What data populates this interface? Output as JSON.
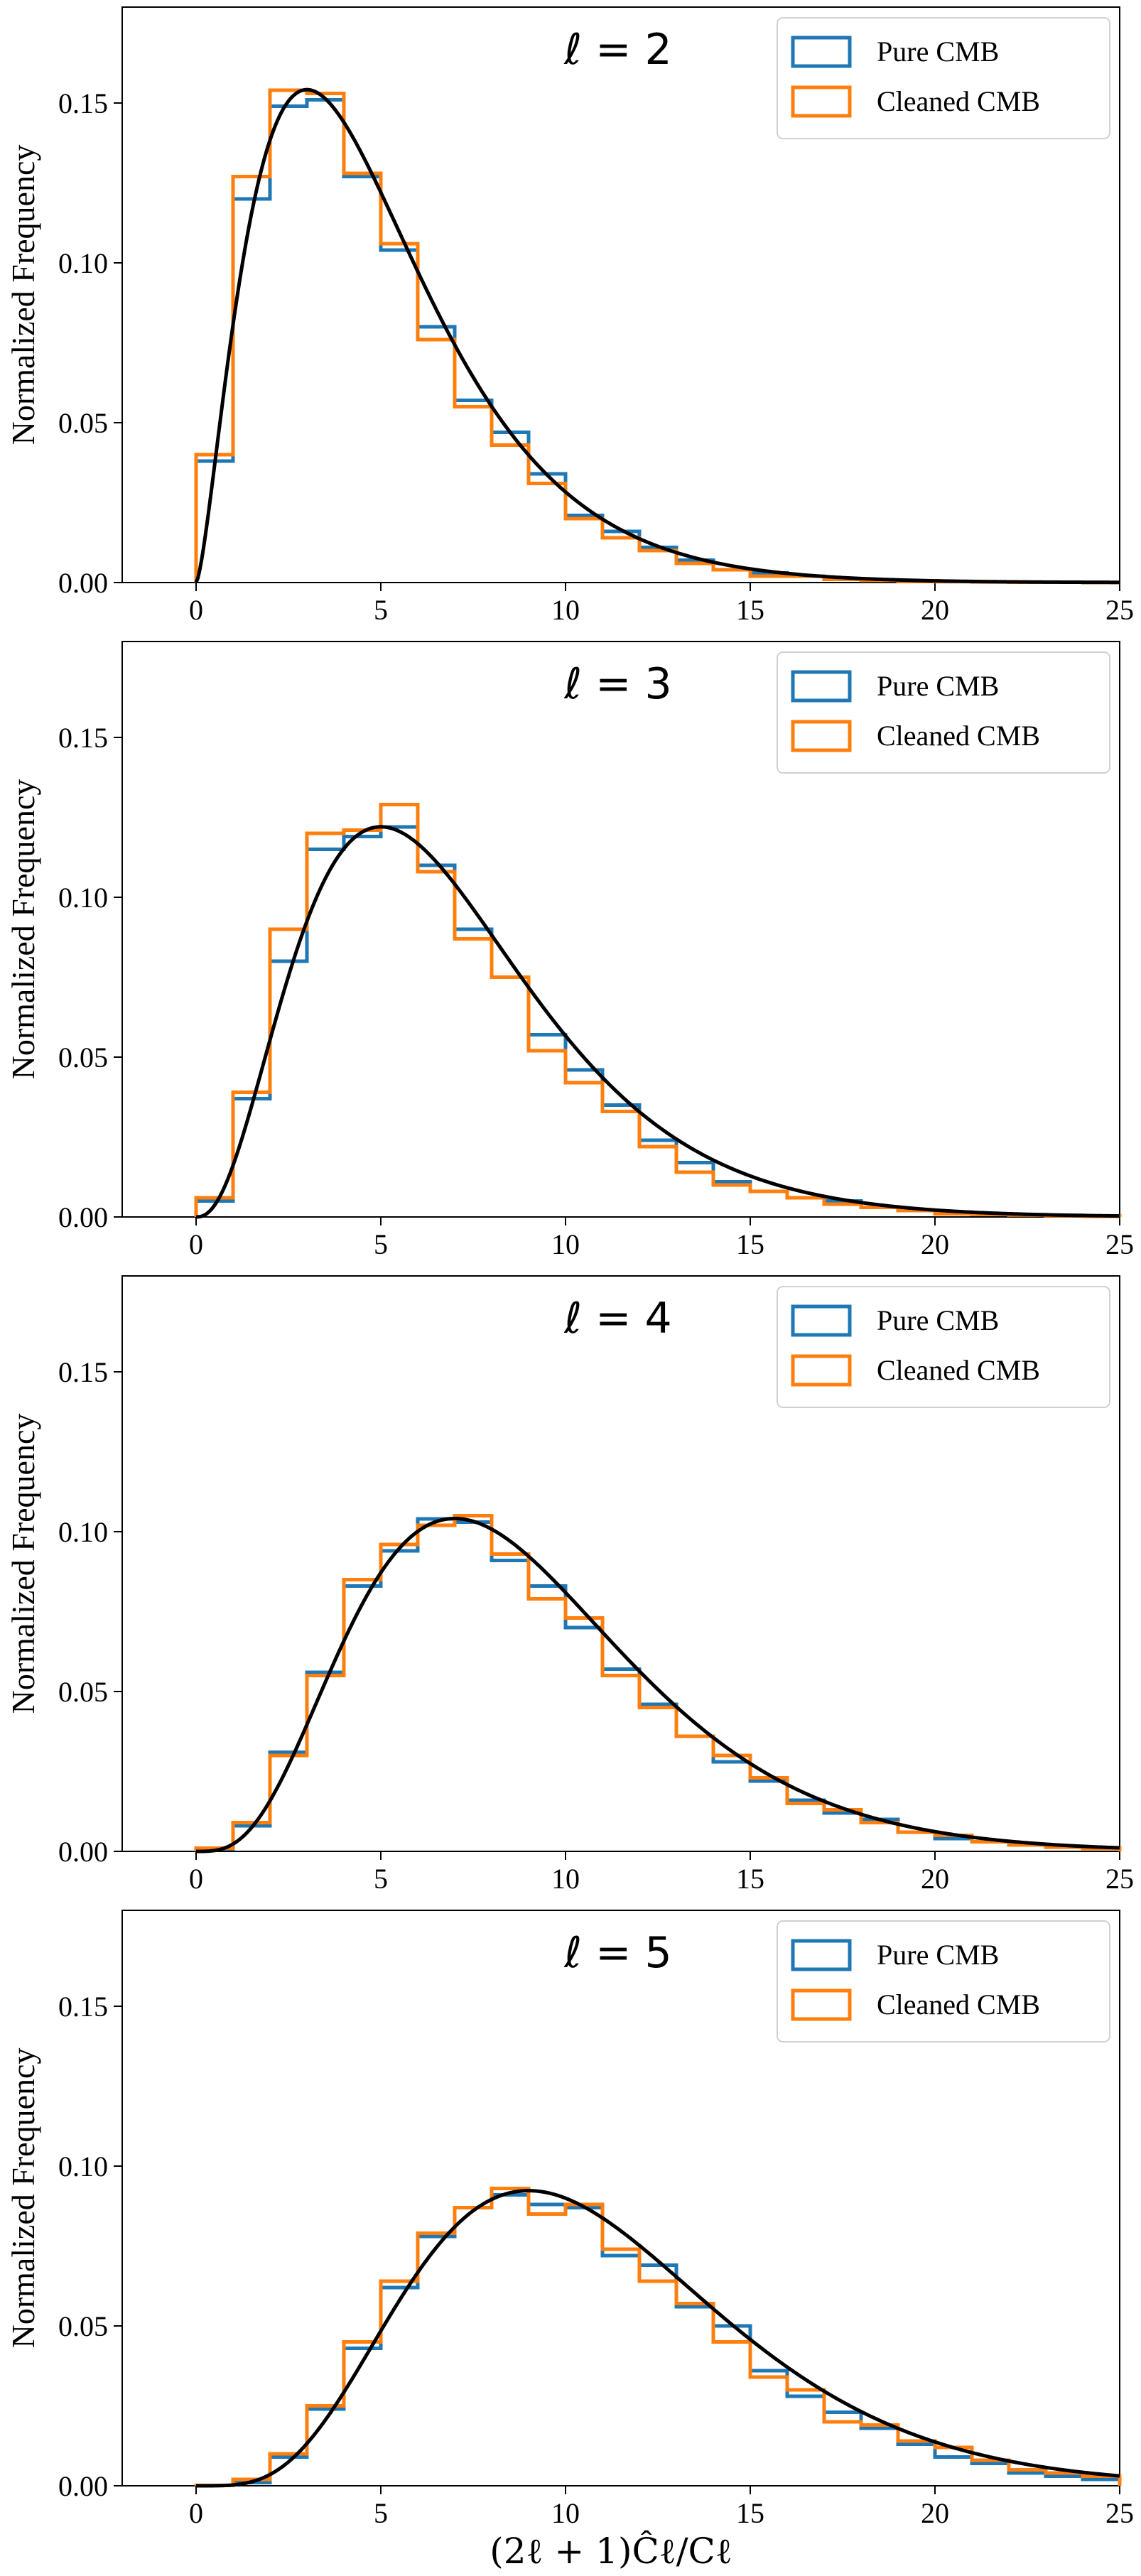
{
  "figure": {
    "xlabel": "(2ℓ + 1)Ĉℓ/Cℓ",
    "colors": {
      "pure": "#1f77b4",
      "cleaned": "#ff7f0e",
      "theory": "#000000"
    }
  },
  "chart_data": [
    {
      "type": "bar",
      "title": "ℓ = 2",
      "ylabel": "Normalized Frequency",
      "xlim": [
        -2,
        25
      ],
      "ylim": [
        0,
        0.18
      ],
      "xticks": [
        "0",
        "5",
        "10",
        "15",
        "20",
        "25"
      ],
      "yticks": [
        "0.00",
        "0.05",
        "0.10",
        "0.15"
      ],
      "legend": [
        "Pure CMB",
        "Cleaned CMB"
      ],
      "bin_edges": [
        0,
        1,
        2,
        3,
        4,
        5,
        6,
        7,
        8,
        9,
        10,
        11,
        12,
        13,
        14,
        15,
        16,
        17,
        18,
        19,
        20,
        21,
        22,
        23,
        24,
        25
      ],
      "series": [
        {
          "name": "Pure CMB",
          "values": [
            0.038,
            0.12,
            0.149,
            0.151,
            0.127,
            0.104,
            0.08,
            0.057,
            0.047,
            0.034,
            0.021,
            0.016,
            0.011,
            0.007,
            0.004,
            0.003,
            0.002,
            0.0012,
            0.0008,
            0.0005,
            0.0003,
            0.0002,
            0.0001,
            0.0001,
            0.0
          ]
        },
        {
          "name": "Cleaned CMB",
          "values": [
            0.04,
            0.127,
            0.154,
            0.153,
            0.128,
            0.106,
            0.076,
            0.055,
            0.043,
            0.031,
            0.02,
            0.014,
            0.01,
            0.006,
            0.004,
            0.002,
            0.002,
            0.001,
            0.0007,
            0.0004,
            0.0003,
            0.0002,
            0.0001,
            0.0001,
            0.0
          ]
        }
      ],
      "theory": {
        "name": "chi-squared",
        "dof": 5
      }
    },
    {
      "type": "bar",
      "title": "ℓ = 3",
      "ylabel": "Normalized Frequency",
      "xlim": [
        -2,
        25
      ],
      "ylim": [
        0,
        0.18
      ],
      "xticks": [
        "0",
        "5",
        "10",
        "15",
        "20",
        "25"
      ],
      "yticks": [
        "0.00",
        "0.05",
        "0.10",
        "0.15"
      ],
      "legend": [
        "Pure CMB",
        "Cleaned CMB"
      ],
      "bin_edges": [
        0,
        1,
        2,
        3,
        4,
        5,
        6,
        7,
        8,
        9,
        10,
        11,
        12,
        13,
        14,
        15,
        16,
        17,
        18,
        19,
        20,
        21,
        22,
        23,
        24,
        25
      ],
      "series": [
        {
          "name": "Pure CMB",
          "values": [
            0.005,
            0.037,
            0.08,
            0.115,
            0.119,
            0.122,
            0.11,
            0.09,
            0.075,
            0.057,
            0.046,
            0.035,
            0.024,
            0.017,
            0.011,
            0.008,
            0.006,
            0.005,
            0.003,
            0.002,
            0.0015,
            0.001,
            0.0007,
            0.0005,
            0.0003
          ]
        },
        {
          "name": "Cleaned CMB",
          "values": [
            0.006,
            0.039,
            0.09,
            0.12,
            0.121,
            0.129,
            0.108,
            0.087,
            0.075,
            0.052,
            0.042,
            0.033,
            0.022,
            0.014,
            0.01,
            0.008,
            0.006,
            0.004,
            0.003,
            0.002,
            0.001,
            0.0008,
            0.0006,
            0.0004,
            0.0002
          ]
        }
      ],
      "theory": {
        "name": "chi-squared",
        "dof": 7
      }
    },
    {
      "type": "bar",
      "title": "ℓ = 4",
      "ylabel": "Normalized Frequency",
      "xlim": [
        -2,
        25
      ],
      "ylim": [
        0,
        0.18
      ],
      "xticks": [
        "0",
        "5",
        "10",
        "15",
        "20",
        "25"
      ],
      "yticks": [
        "0.00",
        "0.05",
        "0.10",
        "0.15"
      ],
      "legend": [
        "Pure CMB",
        "Cleaned CMB"
      ],
      "bin_edges": [
        0,
        1,
        2,
        3,
        4,
        5,
        6,
        7,
        8,
        9,
        10,
        11,
        12,
        13,
        14,
        15,
        16,
        17,
        18,
        19,
        20,
        21,
        22,
        23,
        24,
        25
      ],
      "series": [
        {
          "name": "Pure CMB",
          "values": [
            0.0008,
            0.008,
            0.031,
            0.056,
            0.083,
            0.094,
            0.104,
            0.103,
            0.091,
            0.083,
            0.07,
            0.057,
            0.046,
            0.036,
            0.028,
            0.022,
            0.016,
            0.012,
            0.01,
            0.006,
            0.004,
            0.003,
            0.002,
            0.0015,
            0.001
          ]
        },
        {
          "name": "Cleaned CMB",
          "values": [
            0.001,
            0.009,
            0.03,
            0.055,
            0.085,
            0.096,
            0.102,
            0.105,
            0.093,
            0.079,
            0.073,
            0.055,
            0.045,
            0.036,
            0.03,
            0.023,
            0.015,
            0.013,
            0.009,
            0.006,
            0.005,
            0.003,
            0.002,
            0.0013,
            0.0009
          ]
        }
      ],
      "theory": {
        "name": "chi-squared",
        "dof": 9
      }
    },
    {
      "type": "bar",
      "title": "ℓ = 5",
      "ylabel": "Normalized Frequency",
      "xlim": [
        -2,
        25
      ],
      "ylim": [
        0,
        0.18
      ],
      "xticks": [
        "0",
        "5",
        "10",
        "15",
        "20",
        "25"
      ],
      "yticks": [
        "0.00",
        "0.05",
        "0.10",
        "0.15"
      ],
      "legend": [
        "Pure CMB",
        "Cleaned CMB"
      ],
      "bin_edges": [
        0,
        1,
        2,
        3,
        4,
        5,
        6,
        7,
        8,
        9,
        10,
        11,
        12,
        13,
        14,
        15,
        16,
        17,
        18,
        19,
        20,
        21,
        22,
        23,
        24,
        25
      ],
      "series": [
        {
          "name": "Pure CMB",
          "values": [
            0.0001,
            0.001,
            0.009,
            0.024,
            0.043,
            0.062,
            0.078,
            0.087,
            0.091,
            0.088,
            0.087,
            0.072,
            0.069,
            0.056,
            0.05,
            0.036,
            0.028,
            0.023,
            0.018,
            0.013,
            0.009,
            0.007,
            0.004,
            0.003,
            0.002
          ]
        },
        {
          "name": "Cleaned CMB",
          "values": [
            0.0001,
            0.002,
            0.01,
            0.025,
            0.045,
            0.064,
            0.079,
            0.087,
            0.093,
            0.085,
            0.088,
            0.074,
            0.064,
            0.057,
            0.045,
            0.034,
            0.03,
            0.02,
            0.019,
            0.014,
            0.012,
            0.008,
            0.005,
            0.004,
            0.003
          ]
        }
      ],
      "theory": {
        "name": "chi-squared",
        "dof": 11
      }
    }
  ]
}
